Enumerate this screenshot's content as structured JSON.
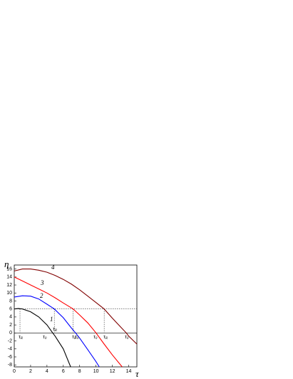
{
  "chart_data": {
    "type": "line",
    "y_label": "η",
    "x_label": "τ",
    "xlim": [
      0,
      15
    ],
    "ylim": [
      -8.5,
      17
    ],
    "xticks": [
      0,
      2,
      4,
      6,
      8,
      10,
      12,
      14
    ],
    "yticks": [
      -8,
      -6,
      -4,
      -2,
      0,
      2,
      4,
      6,
      8,
      10,
      12,
      14,
      16
    ],
    "series": [
      {
        "name": "1",
        "color": "#000000",
        "x": [
          0,
          0.5,
          1,
          2,
          3,
          4,
          4.7,
          5,
          6,
          6.9
        ],
        "values": [
          6,
          6.1,
          6,
          5.3,
          4,
          2,
          0,
          -0.8,
          -4,
          -8.5
        ]
      },
      {
        "name": "2",
        "color": "#0000ff",
        "x": [
          0,
          1,
          2,
          3,
          4,
          4.9,
          6,
          7,
          7.5,
          8,
          9,
          10,
          10.4
        ],
        "values": [
          9,
          9.3,
          9.2,
          8.5,
          7.2,
          6,
          3.8,
          1.2,
          0,
          -1.3,
          -4.2,
          -7.2,
          -8.5
        ]
      },
      {
        "name": "3",
        "color": "#ff0000",
        "x": [
          0,
          1,
          2,
          3,
          4,
          5,
          6,
          7.2,
          8,
          9,
          10,
          11,
          12,
          13.2
        ],
        "values": [
          14,
          13,
          12,
          11,
          10,
          8.8,
          7.5,
          6,
          4.5,
          2.5,
          0,
          -2.8,
          -5.5,
          -8.5
        ]
      },
      {
        "name": "4",
        "color": "#800000",
        "x": [
          0,
          1,
          2,
          3,
          4,
          5,
          6,
          7,
          8,
          9,
          10,
          11,
          12,
          13,
          13.7,
          14,
          15
        ],
        "values": [
          15.5,
          16,
          16,
          15.7,
          15.2,
          14.4,
          13.4,
          12.2,
          10.8,
          9.2,
          7.6,
          6,
          3.7,
          1.5,
          0,
          -0.8,
          -2.8
        ]
      }
    ],
    "threshold": 6,
    "markers": [
      0.7,
      4.9,
      7.2,
      11
    ],
    "annotations": [
      {
        "text": "τ",
        "sub": "R"
      },
      {
        "text": "τ",
        "sub": "0"
      },
      {
        "text": "τ",
        "sub": "R"
      },
      {
        "text": "τ",
        "sub": "0"
      },
      {
        "text": "τ",
        "sub": "R"
      },
      {
        "text": "τ",
        "sub": "0"
      },
      {
        "text": "τ",
        "sub": "R"
      },
      {
        "text": "τ",
        "sub": "0"
      }
    ]
  }
}
